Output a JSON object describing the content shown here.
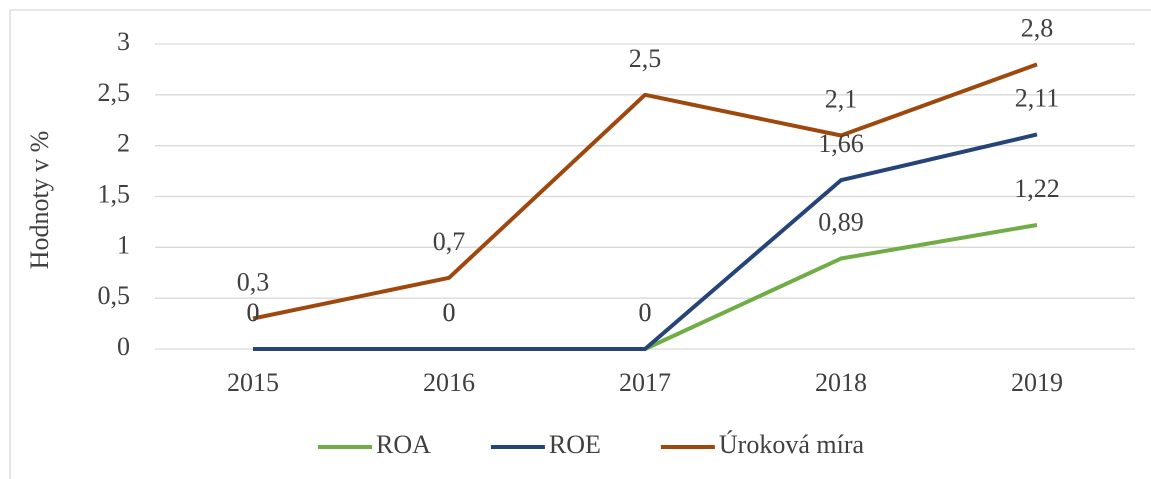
{
  "chart_data": {
    "type": "line",
    "y_label": "Hodnoty v %",
    "categories": [
      "2015",
      "2016",
      "2017",
      "2018",
      "2019"
    ],
    "series": [
      {
        "name": "ROA",
        "color": "#70ad47",
        "values": [
          0,
          0,
          0,
          0.89,
          1.22
        ],
        "value_labels": [
          "0",
          "0",
          "0",
          "0,89",
          "1,22"
        ]
      },
      {
        "name": "ROE",
        "color": "#264478",
        "values": [
          0,
          0,
          0,
          1.66,
          2.11
        ],
        "value_labels": [
          "0",
          "0",
          "0",
          "1,66",
          "2,11"
        ]
      },
      {
        "name": "Úroková míra",
        "color": "#9e480e",
        "values": [
          0.3,
          0.7,
          2.5,
          2.1,
          2.8
        ],
        "value_labels": [
          "0,3",
          "0,7",
          "2,5",
          "2,1",
          "2,8"
        ]
      }
    ],
    "ylim": [
      0,
      3
    ],
    "yticks": [
      0,
      {
        "value": 0.5,
        "label": "0,5"
      },
      1,
      {
        "value": 1.5,
        "label": "1,5"
      },
      2,
      {
        "value": 2.5,
        "label": "2,5"
      },
      3
    ],
    "grid": true,
    "legend": "bottom"
  }
}
